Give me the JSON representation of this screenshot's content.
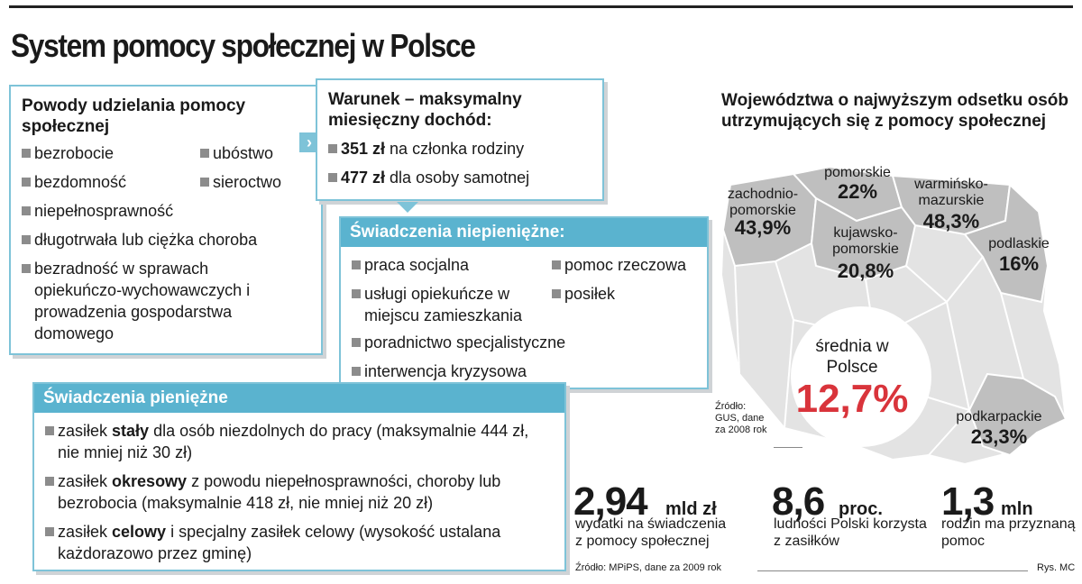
{
  "title": "System pomocy społecznej w Polsce",
  "reasons": {
    "heading": "Powody udzielania pomocy społecznej",
    "row1_left": "bezrobocie",
    "row1_right": "ubóstwo",
    "row2_left": "bezdomność",
    "row2_right": "sieroctwo",
    "row3": "niepełnosprawność",
    "row4": "długotrwała lub ciężka choroba",
    "row5": "bezradność w sprawach opiekuńczo-wychowawczych i prowadzenia gospodarstwa domowego"
  },
  "condition": {
    "heading": "Warunek – maksymalny miesięczny dochód:",
    "line1_bold": "351 zł",
    "line1_rest": " na członka rodziny",
    "line2_bold": "477 zł",
    "line2_rest": " dla osoby samotnej"
  },
  "nonmonetary": {
    "heading": "Świadczenia niepieniężne:",
    "i1": "praca socjalna",
    "i2": "pomoc rzeczowa",
    "i3": "usługi opiekuńcze w miejscu zamieszkania",
    "i4": "posiłek",
    "i5": "poradnictwo specjalistyczne",
    "i6": "interwencja kryzysowa"
  },
  "monetary": {
    "heading": "Świadczenia pieniężne",
    "a_pre": "zasiłek ",
    "a_bold": "stały",
    "a_post": " dla osób niezdolnych do pracy (maksymalnie 444 zł, nie mniej niż 30 zł)",
    "b_pre": "zasiłek ",
    "b_bold": "okresowy",
    "b_post": " z powodu niepełnosprawności, choroby lub bezrobocia (maksymalnie 418 zł, nie mniej niż 20 zł)",
    "c_pre": "zasiłek ",
    "c_bold": "celowy",
    "c_post": " i specjalny zasiłek celowy (wysokość ustalana każdorazowo przez gminę)"
  },
  "map": {
    "title": "Województwa o najwyższym odsetku osób utrzymujących się z pomocy społecznej",
    "regions": [
      {
        "name": "zachodnio-pomorskie",
        "pct": "43,9%"
      },
      {
        "name": "pomorskie",
        "pct": "22%"
      },
      {
        "name": "warmińsko-mazurskie",
        "pct": "48,3%"
      },
      {
        "name": "kujawsko-pomorskie",
        "pct": "20,8%"
      },
      {
        "name": "podlaskie",
        "pct": "16%"
      },
      {
        "name": "podkarpackie",
        "pct": "23,3%"
      }
    ],
    "avg_label": "średnia w Polsce",
    "avg_value": "12,7%",
    "source": "Źródło: GUS, dane za 2008 rok"
  },
  "stats": [
    {
      "value": "2,94",
      "unit": "mld zł",
      "desc": "wydatki na świadczenia z pomocy społecznej"
    },
    {
      "value": "8,6",
      "unit": "proc.",
      "desc": "ludności Polski korzysta z zasiłków"
    },
    {
      "value": "1,3",
      "unit": "mln",
      "desc": "rodzin ma przyznaną pomoc"
    }
  ],
  "footer": {
    "source": "Źródło: MPiPS, dane za 2009 rok",
    "credit": "Rys. MC"
  },
  "colors": {
    "accent": "#5ab3cf",
    "border": "#7ec3d8",
    "highlight": "#d9343b",
    "map_dark": "#bfbfbf",
    "map_light": "#e3e3e3"
  }
}
